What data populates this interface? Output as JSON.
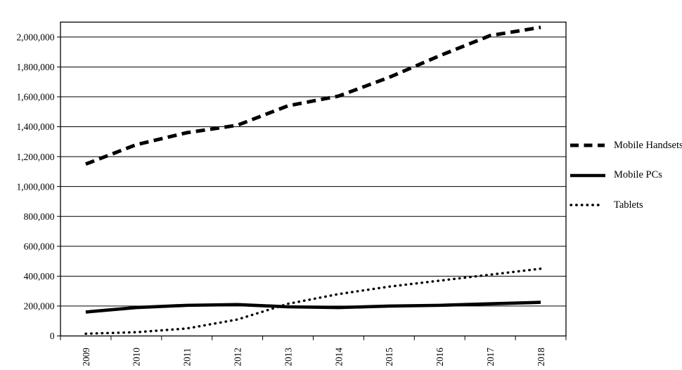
{
  "chart_data": {
    "type": "line",
    "title": "",
    "xlabel": "",
    "ylabel": "",
    "categories": [
      "2009",
      "2010",
      "2011",
      "2012",
      "2013",
      "2014",
      "2015",
      "2016",
      "2017",
      "2018"
    ],
    "series": [
      {
        "name": "Mobile Handsets",
        "line_style": "dashed",
        "values": [
          1150000,
          1280000,
          1360000,
          1410000,
          1540000,
          1605000,
          1730000,
          1875000,
          2010000,
          2065000
        ]
      },
      {
        "name": "Mobile PCs",
        "line_style": "solid",
        "values": [
          160000,
          190000,
          205000,
          210000,
          195000,
          190000,
          200000,
          205000,
          215000,
          225000
        ]
      },
      {
        "name": "Tablets",
        "line_style": "dotted",
        "values": [
          15000,
          25000,
          50000,
          110000,
          215000,
          280000,
          330000,
          370000,
          410000,
          450000
        ]
      }
    ],
    "ylim": [
      0,
      2100000
    ],
    "y_ticks": [
      0,
      200000,
      400000,
      600000,
      800000,
      1000000,
      1200000,
      1400000,
      1600000,
      1800000,
      2000000
    ],
    "y_tick_labels": [
      "0",
      "200,000",
      "400,000",
      "600,000",
      "800,000",
      "1,000,000",
      "1,200,000",
      "1,400,000",
      "1,600,000",
      "1,800,000",
      "2,000,000"
    ],
    "grid": "horizontal",
    "legend_position": "right",
    "line_color": "#000000",
    "background_color": "#ffffff"
  }
}
